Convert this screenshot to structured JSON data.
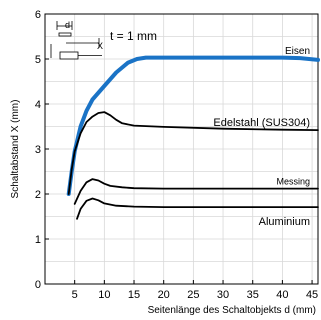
{
  "chart_data": {
    "type": "line",
    "xlabel": "Seitenlänge des Schaltobjekts d (mm)",
    "ylabel": "Schaltabstand X (mm)",
    "xlim": [
      0,
      46
    ],
    "ylim": [
      0,
      6
    ],
    "xticks": [
      5,
      10,
      15,
      20,
      25,
      30,
      35,
      40,
      45
    ],
    "yticks": [
      0,
      1,
      2,
      3,
      4,
      5,
      6
    ],
    "grid": true,
    "legend": "none",
    "inset": {
      "thickness_label": "t = 1 mm",
      "d_label": "d",
      "x_label": "X"
    },
    "series": [
      {
        "name": "Eisen",
        "color": "#1a73c6",
        "highlight": true,
        "points": [
          [
            4,
            2.0
          ],
          [
            4.5,
            2.5
          ],
          [
            5,
            2.95
          ],
          [
            6,
            3.5
          ],
          [
            7,
            3.85
          ],
          [
            8,
            4.1
          ],
          [
            10,
            4.4
          ],
          [
            12,
            4.7
          ],
          [
            14,
            4.92
          ],
          [
            15.5,
            5.0
          ],
          [
            17,
            5.03
          ],
          [
            20,
            5.03
          ],
          [
            30,
            5.03
          ],
          [
            40,
            5.03
          ],
          [
            43,
            5.02
          ],
          [
            46,
            4.98
          ]
        ]
      },
      {
        "name": "Edelstahl (SUS304)",
        "color": "#000000",
        "points": [
          [
            4,
            2.0
          ],
          [
            4.5,
            2.55
          ],
          [
            5,
            2.95
          ],
          [
            6,
            3.35
          ],
          [
            7,
            3.6
          ],
          [
            8,
            3.72
          ],
          [
            9,
            3.8
          ],
          [
            10,
            3.82
          ],
          [
            11,
            3.75
          ],
          [
            12,
            3.65
          ],
          [
            13,
            3.57
          ],
          [
            15,
            3.52
          ],
          [
            20,
            3.49
          ],
          [
            30,
            3.45
          ],
          [
            40,
            3.43
          ],
          [
            46,
            3.42
          ]
        ]
      },
      {
        "name": "Messing",
        "color": "#000000",
        "points": [
          [
            5,
            1.78
          ],
          [
            6,
            2.07
          ],
          [
            7,
            2.26
          ],
          [
            8,
            2.33
          ],
          [
            9,
            2.3
          ],
          [
            10,
            2.23
          ],
          [
            11,
            2.18
          ],
          [
            13,
            2.15
          ],
          [
            15,
            2.13
          ],
          [
            20,
            2.12
          ],
          [
            30,
            2.12
          ],
          [
            46,
            2.12
          ]
        ]
      },
      {
        "name": "Aluminium",
        "color": "#000000",
        "points": [
          [
            5.4,
            1.45
          ],
          [
            6,
            1.67
          ],
          [
            7,
            1.85
          ],
          [
            8,
            1.9
          ],
          [
            9,
            1.86
          ],
          [
            10,
            1.79
          ],
          [
            12,
            1.74
          ],
          [
            15,
            1.72
          ],
          [
            20,
            1.71
          ],
          [
            30,
            1.71
          ],
          [
            46,
            1.71
          ]
        ]
      }
    ]
  }
}
